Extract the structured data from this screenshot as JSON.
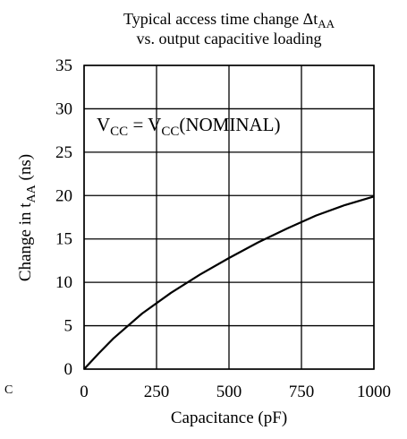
{
  "chart_data": {
    "type": "line",
    "title_line1_main": "Typical access time change Δt",
    "title_line1_sub": "AA",
    "title_line2": "vs. output capacitive loading",
    "annotation": {
      "v1_main": "V",
      "v1_sub": "CC",
      "equals": " = ",
      "v2_main": "V",
      "v2_sub": "CC",
      "suffix": "(NOMINAL)"
    },
    "xlabel": "Capacitance  (pF)",
    "ylabel_main": "Change in t",
    "ylabel_sub": "AA",
    "ylabel_suffix": " (ns)",
    "x_ticks": [
      0,
      250,
      500,
      750,
      1000
    ],
    "y_ticks": [
      0,
      5,
      10,
      15,
      20,
      25,
      30,
      35
    ],
    "xlim": [
      0,
      1000
    ],
    "ylim": [
      0,
      35
    ],
    "grid": true,
    "stray_mark": "C",
    "colors": {
      "line": "#000000",
      "grid": "#000000",
      "background": "#ffffff"
    },
    "series": [
      {
        "x": [
          0,
          50,
          100,
          200,
          300,
          400,
          500,
          600,
          700,
          800,
          900,
          1000
        ],
        "y": [
          0,
          1.8,
          3.5,
          6.4,
          8.8,
          10.9,
          12.8,
          14.6,
          16.2,
          17.7,
          18.9,
          19.9
        ]
      }
    ]
  }
}
